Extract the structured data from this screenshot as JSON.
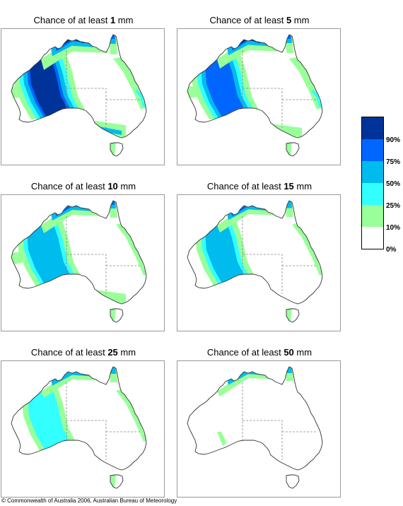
{
  "panels": [
    {
      "title_prefix": "Chance of at least ",
      "amount": "1",
      "unit": " mm",
      "level": 6
    },
    {
      "title_prefix": "Chance of at least ",
      "amount": "5",
      "unit": " mm",
      "level": 5
    },
    {
      "title_prefix": "Chance of at least ",
      "amount": "10",
      "unit": " mm",
      "level": 4
    },
    {
      "title_prefix": "Chance of at least ",
      "amount": "15",
      "unit": " mm",
      "level": 3
    },
    {
      "title_prefix": "Chance of at least ",
      "amount": "25",
      "unit": " mm",
      "level": 2
    },
    {
      "title_prefix": "Chance of at least ",
      "amount": "50",
      "unit": " mm",
      "level": 1
    }
  ],
  "legend": {
    "labels": [
      "90%",
      "75%",
      "50%",
      "25%",
      "10%",
      "0%"
    ],
    "colors": [
      "#003399",
      "#0066ff",
      "#00bbee",
      "#33ffff",
      "#99ff99",
      "#ffffff"
    ]
  },
  "copyright": "© Commonwealth of Australia 2006, Australian Bureau of Meteorology"
}
